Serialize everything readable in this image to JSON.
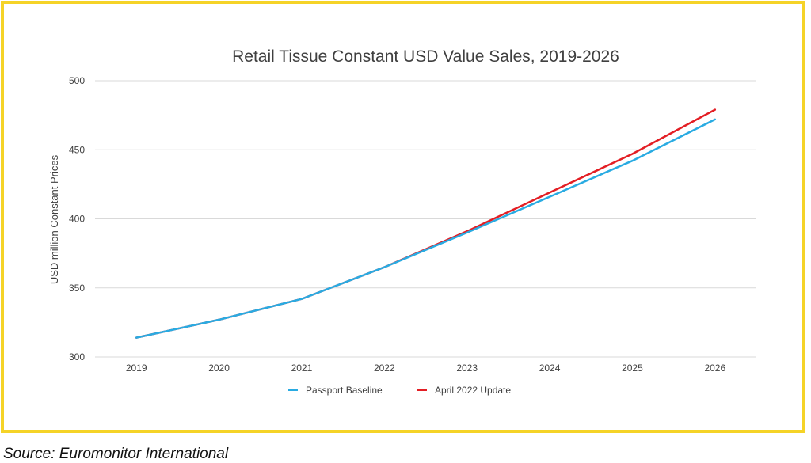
{
  "chart_data": {
    "type": "line",
    "title": "Retail Tissue Constant USD Value Sales, 2019-2026",
    "ylabel": "USD million Constant Prices",
    "xlabel": "",
    "x": [
      "2019",
      "2020",
      "2021",
      "2022",
      "2023",
      "2024",
      "2025",
      "2026"
    ],
    "ylim": [
      300,
      500
    ],
    "yticks": [
      300,
      350,
      400,
      450,
      500
    ],
    "grid": true,
    "legend_position": "bottom",
    "series": [
      {
        "name": "Passport Baseline",
        "color": "#29abe2",
        "values": [
          314,
          327,
          342,
          365,
          390,
          416,
          442,
          472
        ]
      },
      {
        "name": "April 2022 Update",
        "color": "#e31e24",
        "values": [
          314,
          327,
          342,
          365,
          391,
          419,
          447,
          479
        ]
      }
    ]
  },
  "source": "Source: Euromonitor International",
  "colors": {
    "frame": "#f5d327",
    "gridline": "#d9d9d9",
    "text": "#404040"
  }
}
